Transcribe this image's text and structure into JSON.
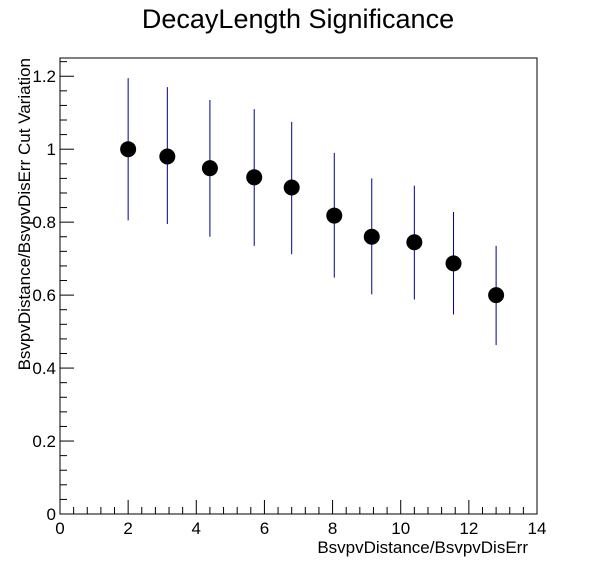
{
  "chart_data": {
    "type": "scatter",
    "title": "DecayLength Significance",
    "xlabel": "BsvpvDistance/BsvpvDisErr",
    "ylabel": "BsvpvDistance/BsvpvDisErr Cut Variation",
    "xlim": [
      0,
      14
    ],
    "ylim": [
      0,
      1.25
    ],
    "x_ticks": [
      0,
      2,
      4,
      6,
      8,
      10,
      12,
      14
    ],
    "y_ticks": [
      0,
      0.2,
      0.4,
      0.6,
      0.8,
      1,
      1.2
    ],
    "x_tick_labels": [
      "0",
      "2",
      "4",
      "6",
      "8",
      "10",
      "12",
      "14"
    ],
    "y_tick_labels": [
      "0",
      "0.2",
      "0.4",
      "0.6",
      "0.8",
      "1",
      "1.2"
    ],
    "grid": false,
    "marker_color": "#000000",
    "errorbar_color": "#00008b",
    "points": [
      {
        "x": 2.0,
        "y": 1.0,
        "ylow": 0.805,
        "yhigh": 1.195
      },
      {
        "x": 3.15,
        "y": 0.98,
        "ylow": 0.795,
        "yhigh": 1.17
      },
      {
        "x": 4.4,
        "y": 0.948,
        "ylow": 0.76,
        "yhigh": 1.135
      },
      {
        "x": 5.7,
        "y": 0.923,
        "ylow": 0.735,
        "yhigh": 1.11
      },
      {
        "x": 6.8,
        "y": 0.895,
        "ylow": 0.712,
        "yhigh": 1.075
      },
      {
        "x": 8.05,
        "y": 0.818,
        "ylow": 0.648,
        "yhigh": 0.99
      },
      {
        "x": 9.15,
        "y": 0.76,
        "ylow": 0.602,
        "yhigh": 0.92
      },
      {
        "x": 10.4,
        "y": 0.745,
        "ylow": 0.588,
        "yhigh": 0.9
      },
      {
        "x": 11.55,
        "y": 0.687,
        "ylow": 0.547,
        "yhigh": 0.828
      },
      {
        "x": 12.8,
        "y": 0.6,
        "ylow": 0.463,
        "yhigh": 0.735
      }
    ]
  }
}
